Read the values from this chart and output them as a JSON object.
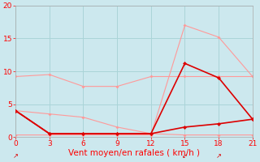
{
  "xlabel": "Vent moyen/en rafales ( km/h )",
  "xlabel_color": "#ff0000",
  "background_color": "#cce8ee",
  "grid_color": "#aad4d8",
  "xlim": [
    0,
    21
  ],
  "ylim": [
    0,
    20
  ],
  "xticks": [
    0,
    3,
    6,
    9,
    12,
    15,
    18,
    21
  ],
  "yticks": [
    0,
    5,
    10,
    15,
    20
  ],
  "line1_x": [
    0,
    3,
    6,
    9,
    12,
    15,
    18,
    21
  ],
  "line1_y": [
    9.2,
    9.5,
    7.7,
    7.7,
    9.2,
    9.2,
    9.2,
    9.2
  ],
  "line1_color": "#ff9999",
  "line1_lw": 0.8,
  "line2_x": [
    0,
    3,
    6,
    9,
    12,
    15,
    18,
    21
  ],
  "line2_y": [
    4.0,
    3.5,
    3.0,
    1.5,
    0.5,
    0.3,
    0.3,
    0.3
  ],
  "line2_color": "#ff9999",
  "line2_lw": 0.8,
  "line3_x": [
    0,
    3,
    6,
    9,
    12,
    15,
    18,
    21
  ],
  "line3_y": [
    0.3,
    0.3,
    0.3,
    0.3,
    0.3,
    17.0,
    15.2,
    9.2
  ],
  "line3_color": "#ff9999",
  "line3_lw": 0.8,
  "line4_x": [
    0,
    3,
    6,
    9,
    12,
    15,
    18,
    21
  ],
  "line4_y": [
    4.0,
    0.5,
    0.5,
    0.5,
    0.5,
    11.2,
    9.0,
    2.7
  ],
  "line4_color": "#dd0000",
  "line4_lw": 1.2,
  "line5_x": [
    0,
    3,
    6,
    9,
    12,
    15,
    18,
    21
  ],
  "line5_y": [
    4.0,
    0.5,
    0.5,
    0.5,
    0.5,
    1.5,
    2.0,
    2.7
  ],
  "line5_color": "#dd0000",
  "line5_lw": 1.2,
  "marker_color": "#dd0000",
  "marker_size": 2.5,
  "light_marker_color": "#ff9999",
  "tick_fontsize": 6.5,
  "xlabel_fontsize": 7.5
}
